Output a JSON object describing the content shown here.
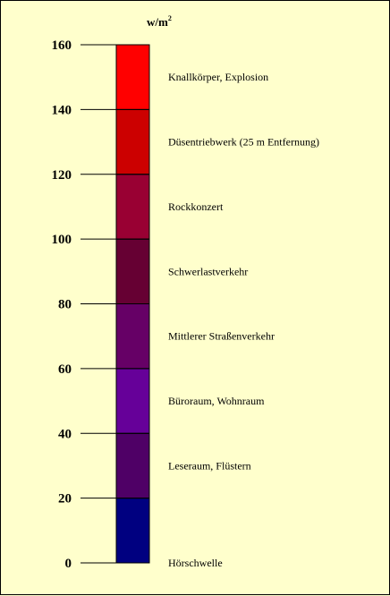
{
  "chart_data": {
    "type": "bar",
    "orientation": "vertical-stacked-scale",
    "unit": "w/m",
    "unit_sup": "2",
    "ylim": [
      0,
      160
    ],
    "yticks": [
      "0",
      "20",
      "40",
      "60",
      "80",
      "100",
      "120",
      "140",
      "160"
    ],
    "grid": false,
    "segments": [
      {
        "from": 0,
        "to": 20,
        "color": "#000080",
        "label": "Hörschwelle"
      },
      {
        "from": 20,
        "to": 40,
        "color": "#4F0066",
        "label": "Leseraum, Flüstern"
      },
      {
        "from": 40,
        "to": 60,
        "color": "#660099",
        "label": "Büroraum, Wohnraum"
      },
      {
        "from": 60,
        "to": 80,
        "color": "#660066",
        "label": "Mittlerer Straßenverkehr"
      },
      {
        "from": 80,
        "to": 100,
        "color": "#660033",
        "label": "Schwerlastverkehr"
      },
      {
        "from": 100,
        "to": 120,
        "color": "#990033",
        "label": "Rockkonzert"
      },
      {
        "from": 120,
        "to": 140,
        "color": "#CC0000",
        "label": "Düsentriebwerk (25 m Entfernung)"
      },
      {
        "from": 140,
        "to": 160,
        "color": "#FF0000",
        "label": "Knallkörper, Explosion"
      }
    ]
  }
}
